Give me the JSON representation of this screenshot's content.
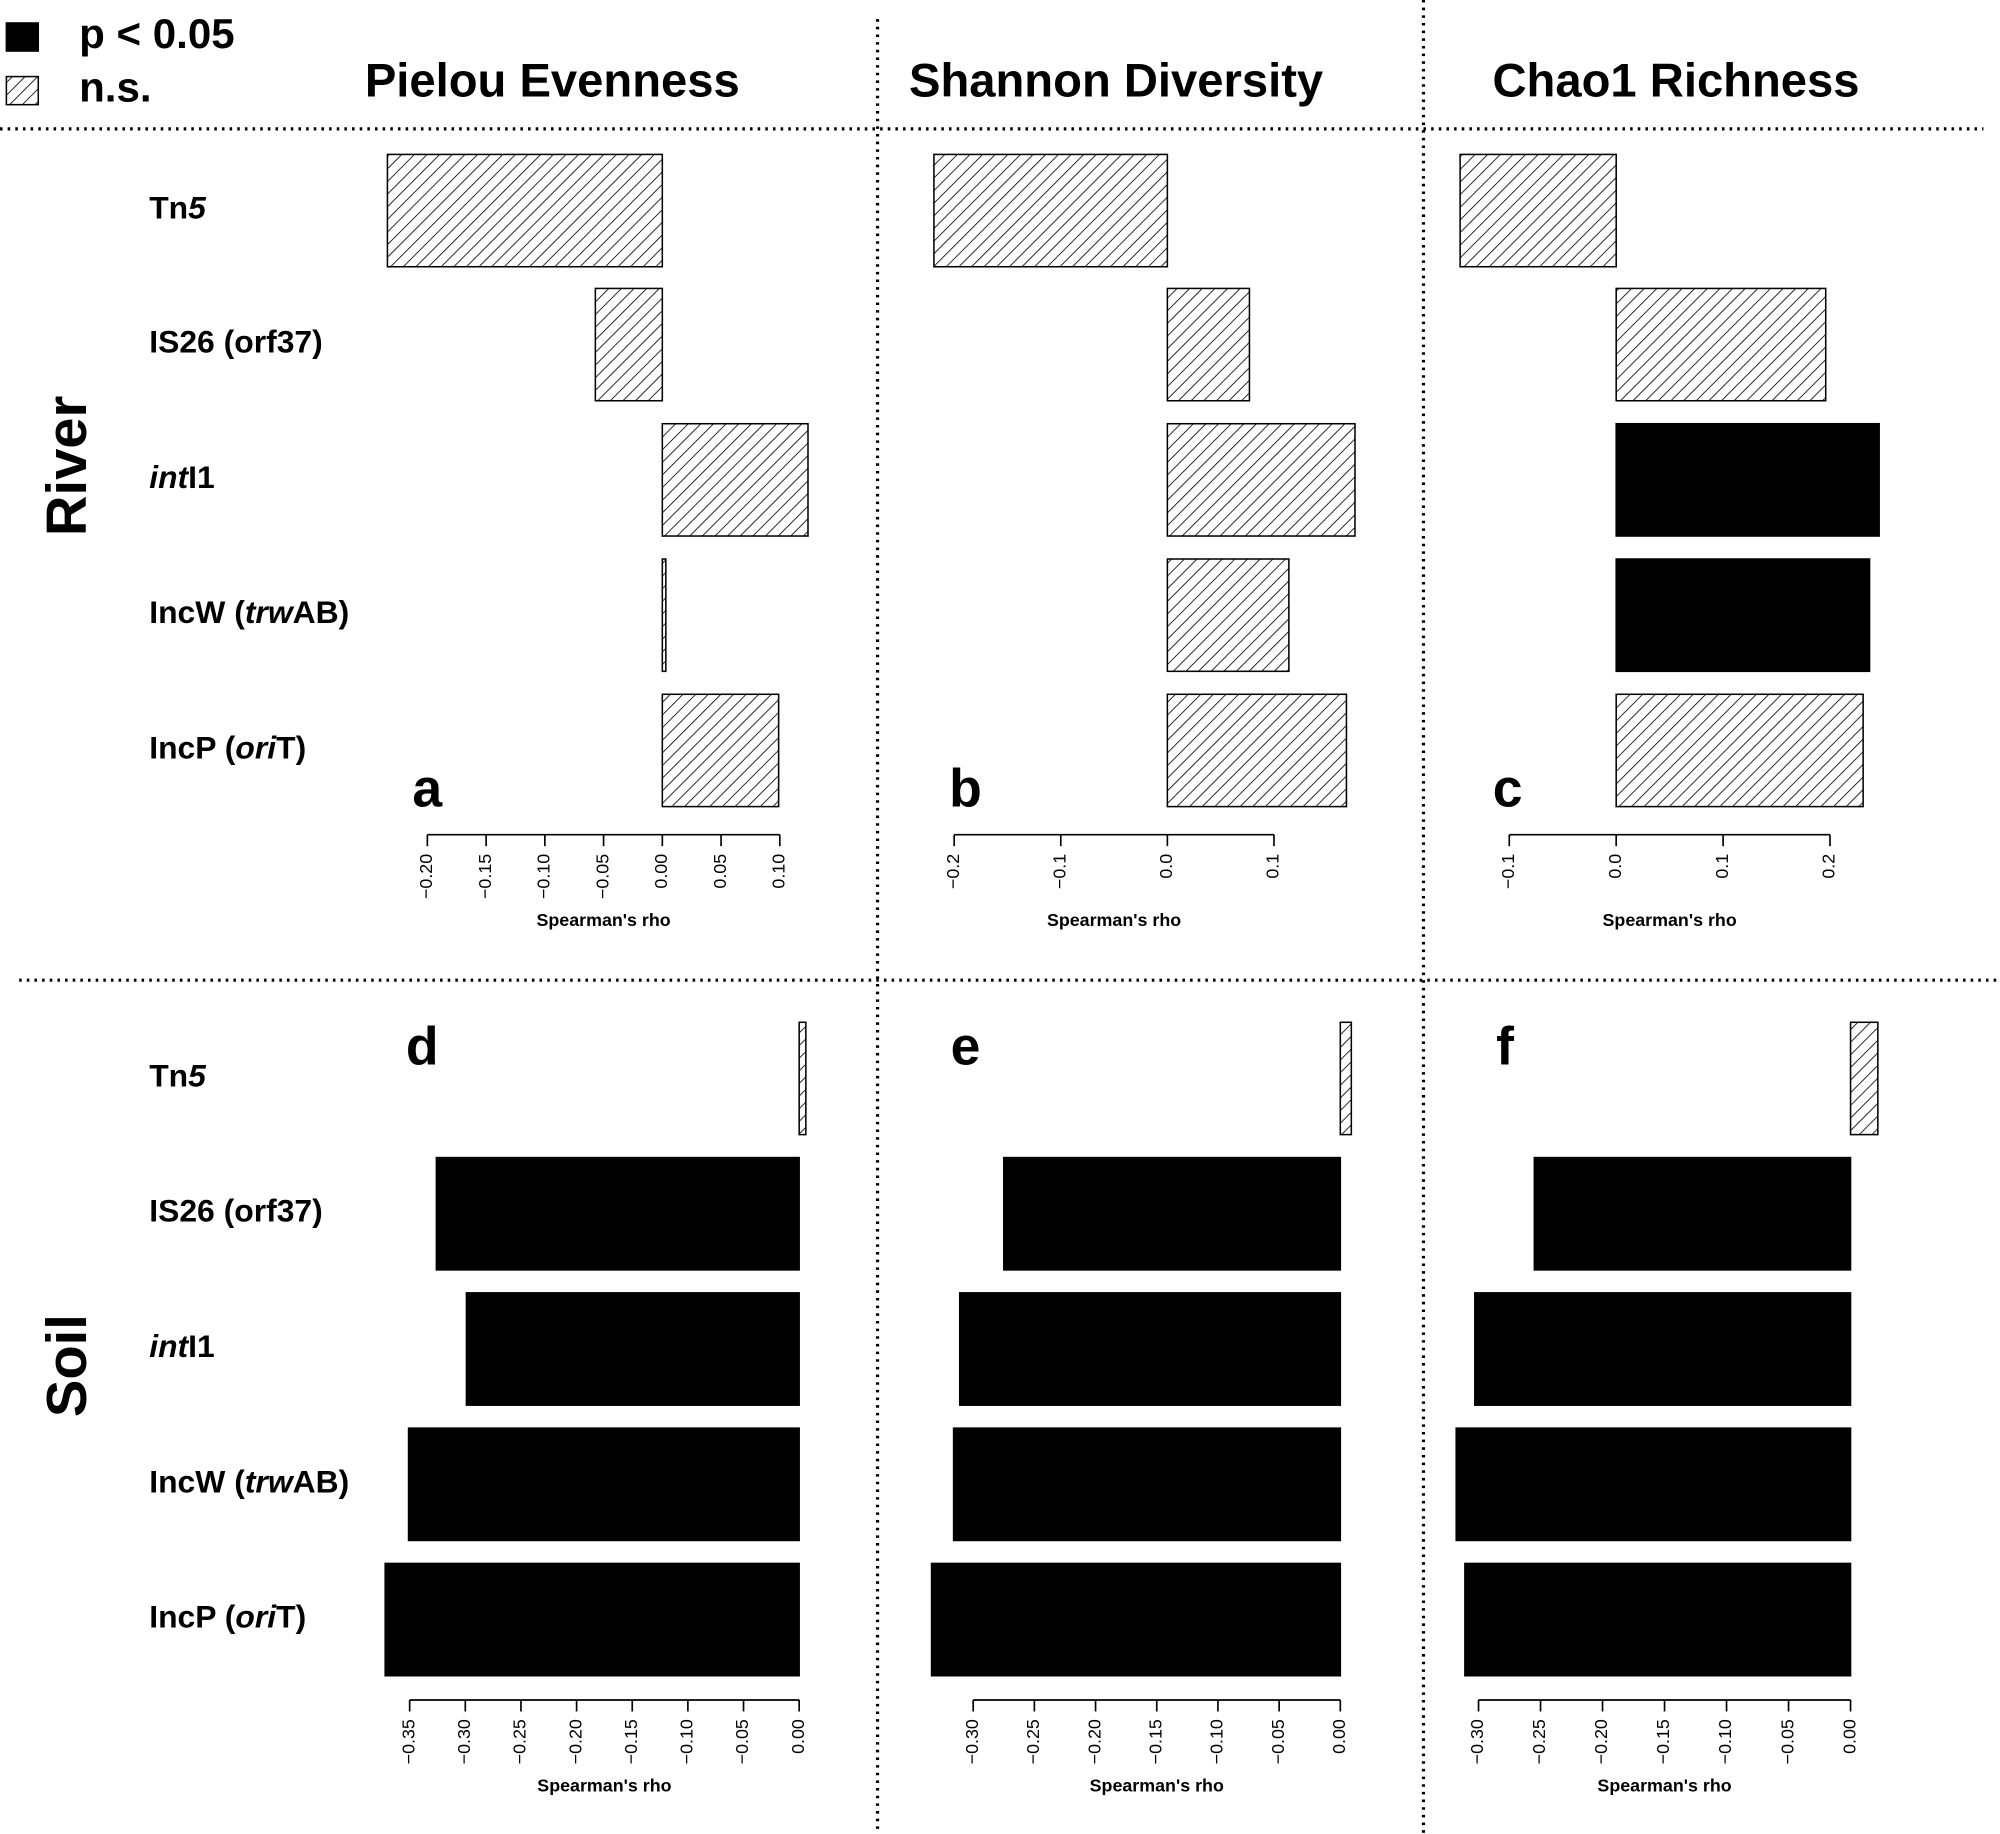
{
  "legend": [
    {
      "label": "p < 0.05",
      "significant": true
    },
    {
      "label": "n.s.",
      "significant": false
    }
  ],
  "columns": [
    "Pielou Evenness",
    "Shannon Diversity",
    "Chao1 Richness"
  ],
  "rows": [
    {
      "label": "River",
      "categories": [
        [
          {
            "text": "Tn",
            "italic": false
          },
          {
            "text": "5",
            "italic": true
          }
        ],
        [
          {
            "text": "IS26 (orf37)",
            "italic": false
          }
        ],
        [
          {
            "text": "int",
            "italic": true
          },
          {
            "text": "I1",
            "italic": false
          }
        ],
        [
          {
            "text": "IncW (",
            "italic": false
          },
          {
            "text": "trw",
            "italic": true
          },
          {
            "text": "AB)",
            "italic": false
          }
        ],
        [
          {
            "text": "IncP (",
            "italic": false
          },
          {
            "text": "ori",
            "italic": true
          },
          {
            "text": "T)",
            "italic": false
          }
        ]
      ]
    },
    {
      "label": "Soil",
      "categories": [
        [
          {
            "text": "Tn",
            "italic": false
          },
          {
            "text": "5",
            "italic": true
          }
        ],
        [
          {
            "text": "IS26 (orf37)",
            "italic": false
          }
        ],
        [
          {
            "text": "int",
            "italic": true
          },
          {
            "text": "I1",
            "italic": false
          }
        ],
        [
          {
            "text": "IncW (",
            "italic": false
          },
          {
            "text": "trw",
            "italic": true
          },
          {
            "text": "AB)",
            "italic": false
          }
        ],
        [
          {
            "text": "IncP (",
            "italic": false
          },
          {
            "text": "ori",
            "italic": true
          },
          {
            "text": "T)",
            "italic": false
          }
        ]
      ]
    }
  ],
  "chart_data": [
    {
      "type": "bar",
      "orientation": "horizontal",
      "panel": "a",
      "xlabel": "Spearman's rho",
      "color": "#000000",
      "values": [
        -0.234,
        -0.057,
        0.124,
        0.003,
        0.099
      ],
      "significant": [
        false,
        false,
        false,
        false,
        false
      ],
      "xlim": [
        -0.25,
        0.13
      ],
      "xticks": [
        {
          "value": -0.2,
          "label": "−0.20"
        },
        {
          "value": -0.15,
          "label": "−0.15"
        },
        {
          "value": -0.1,
          "label": "−0.10"
        },
        {
          "value": -0.05,
          "label": "−0.05"
        },
        {
          "value": 0,
          "label": "0.00"
        },
        {
          "value": 0.05,
          "label": "0.05"
        },
        {
          "value": 0.1,
          "label": "0.10"
        }
      ]
    },
    {
      "type": "bar",
      "orientation": "horizontal",
      "panel": "b",
      "xlabel": "Spearman's rho",
      "color": "#000000",
      "values": [
        -0.219,
        0.077,
        0.176,
        0.114,
        0.168
      ],
      "significant": [
        false,
        false,
        false,
        false,
        false
      ],
      "xlim": [
        -0.23,
        0.19
      ],
      "xticks": [
        {
          "value": -0.2,
          "label": "−0.2"
        },
        {
          "value": -0.1,
          "label": "−0.1"
        },
        {
          "value": 0,
          "label": "0.0"
        },
        0.1
      ]
    },
    {
      "type": "bar",
      "orientation": "horizontal",
      "panel": "c",
      "xlabel": "Spearman's rho",
      "color": "#000000",
      "values": [
        -0.146,
        0.196,
        0.246,
        0.237,
        0.231
      ],
      "significant": [
        false,
        false,
        true,
        true,
        false
      ],
      "xlim": [
        -0.16,
        0.26
      ],
      "xticks": [
        {
          "value": -0.1,
          "label": "−0.1"
        },
        {
          "value": 0,
          "label": "0.0"
        },
        0.1,
        0.2
      ]
    },
    {
      "type": "bar",
      "orientation": "horizontal",
      "panel": "d",
      "xlabel": "Spearman's rho",
      "color": "#000000",
      "values": [
        0.006,
        -0.326,
        -0.299,
        -0.351,
        -0.372
      ],
      "significant": [
        false,
        true,
        true,
        true,
        true
      ],
      "xlim": [
        -0.38,
        0.02
      ],
      "xticks": [
        {
          "value": -0.35,
          "label": "−0.35"
        },
        {
          "value": -0.3,
          "label": "−0.30"
        },
        {
          "value": -0.25,
          "label": "−0.25"
        },
        {
          "value": -0.2,
          "label": "−0.20"
        },
        {
          "value": -0.15,
          "label": "−0.15"
        },
        {
          "value": -0.1,
          "label": "−0.10"
        },
        {
          "value": -0.05,
          "label": "−0.05"
        },
        {
          "value": 0,
          "label": "0.00"
        }
      ]
    },
    {
      "type": "bar",
      "orientation": "horizontal",
      "panel": "e",
      "xlabel": "Spearman's rho",
      "color": "#000000",
      "values": [
        0.009,
        -0.275,
        -0.311,
        -0.316,
        -0.334
      ],
      "significant": [
        false,
        true,
        true,
        true,
        true
      ],
      "xlim": [
        -0.35,
        0.02
      ],
      "xticks": [
        {
          "value": -0.3,
          "label": "−0.30"
        },
        {
          "value": -0.25,
          "label": "−0.25"
        },
        {
          "value": -0.2,
          "label": "−0.20"
        },
        {
          "value": -0.15,
          "label": "−0.15"
        },
        {
          "value": -0.1,
          "label": "−0.10"
        },
        {
          "value": -0.05,
          "label": "−0.05"
        },
        {
          "value": 0,
          "label": "0.00"
        }
      ]
    },
    {
      "type": "bar",
      "orientation": "horizontal",
      "panel": "f",
      "xlabel": "Spearman's rho",
      "color": "#000000",
      "values": [
        0.022,
        -0.255,
        -0.303,
        -0.318,
        -0.311
      ],
      "significant": [
        false,
        true,
        true,
        true,
        true
      ],
      "xlim": [
        -0.33,
        0.03
      ],
      "xticks": [
        {
          "value": -0.3,
          "label": "−0.30"
        },
        {
          "value": -0.25,
          "label": "−0.25"
        },
        {
          "value": -0.2,
          "label": "−0.20"
        },
        {
          "value": -0.15,
          "label": "−0.15"
        },
        {
          "value": -0.1,
          "label": "−0.10"
        },
        {
          "value": -0.05,
          "label": "−0.05"
        },
        {
          "value": 0,
          "label": "0.00"
        }
      ]
    }
  ]
}
